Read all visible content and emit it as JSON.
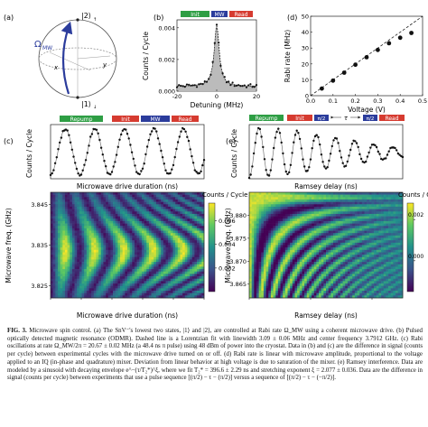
{
  "panel_labels": {
    "a": "(a)",
    "b": "(b)",
    "c": "(c)",
    "d": "(d)",
    "e": "(e)"
  },
  "bloch": {
    "ket2": "|2⟩",
    "ket1": "|1⟩",
    "omega": "Ω",
    "omega_sub": "MW",
    "x": "x",
    "y": "y",
    "sub2": "↑",
    "sub1": "↓"
  },
  "seq_labels": {
    "init": "Init",
    "mw": "MW",
    "read": "Read",
    "repump": "Repump",
    "mwpulse": "MW",
    "pi2": "π/2",
    "tau": "τ"
  },
  "colors": {
    "green": "#2e9e44",
    "red": "#d63b30",
    "blue": "#2b3c9c",
    "line": "#222222",
    "fit": "#777777"
  },
  "chart_data": [
    {
      "panel": "b",
      "type": "scatter",
      "title": "",
      "xlabel": "Detuning (MHz)",
      "ylabel": "Counts / Cycle",
      "xlim": [
        -20,
        20
      ],
      "ylim": [
        0,
        0.0045
      ],
      "xticks": [
        "-20",
        "0",
        "20"
      ],
      "yticks": [
        "0.000",
        "0.002",
        "0.004"
      ],
      "fit": "Lorentzian",
      "center": 0,
      "fwhm": 3.09,
      "peak": 0.0041,
      "baseline": 0.0003
    },
    {
      "panel": "c",
      "type": "line",
      "title": "",
      "xlabel": "Microwave drive duration (ns)",
      "ylabel": "Counts / Cycle",
      "xlim": [
        0,
        250
      ],
      "rabi_freq_mhz": 20.67,
      "periods": 5.2
    },
    {
      "panel": "d",
      "type": "scatter",
      "title": "",
      "xlabel": "Voltage (V)",
      "ylabel": "Rabi rate (MHz)",
      "xlim": [
        0,
        0.5
      ],
      "ylim": [
        0,
        50
      ],
      "xticks": [
        "0.0",
        "0.1",
        "0.2",
        "0.3",
        "0.4",
        "0.5"
      ],
      "yticks": [
        "0",
        "10",
        "20",
        "30",
        "40",
        "50"
      ],
      "x": [
        0.05,
        0.1,
        0.15,
        0.2,
        0.25,
        0.3,
        0.35,
        0.4,
        0.45
      ],
      "y": [
        4.5,
        9.5,
        14.5,
        19.5,
        24.2,
        28.8,
        33,
        36.5,
        39.5
      ],
      "dashed_line": "linear"
    },
    {
      "panel": "c-map",
      "type": "heatmap",
      "title": "",
      "xlabel": "Microwave drive duration (ns)",
      "ylabel": "Microwave freq. (GHz)",
      "xlim": [
        0,
        250
      ],
      "ylim": [
        3.822,
        3.848
      ],
      "yticks": [
        "3.825",
        "3.835",
        "3.845"
      ],
      "xticks": [
        "0",
        "50",
        "100",
        "150",
        "200",
        "250"
      ],
      "colorbar_label": "Counts / Cycle",
      "colorbar_ticks": [
        "0.002",
        "0.004",
        "0.006"
      ],
      "clim": [
        0,
        0.0075
      ]
    },
    {
      "panel": "e",
      "type": "line",
      "title": "",
      "xlabel": "Ramsey delay (ns)",
      "ylabel": "Counts / Cycle",
      "xlim": [
        0,
        500
      ],
      "t2_star_ns": 396.6,
      "periods": 8
    },
    {
      "panel": "e-map",
      "type": "heatmap",
      "title": "",
      "xlabel": "Ramsey delay (ns)",
      "ylabel": "Microwave freq. (GHz)",
      "xlim": [
        0,
        500
      ],
      "ylim": [
        3.862,
        3.885
      ],
      "yticks": [
        "3.865",
        "3.870",
        "3.875",
        "3.880"
      ],
      "xticks": [
        "0",
        "200",
        "400"
      ],
      "colorbar_label": "Counts / Cycle",
      "colorbar_ticks": [
        "0.000",
        "0.002"
      ],
      "clim": [
        -0.0015,
        0.0028
      ]
    }
  ],
  "caption": {
    "label": "FIG. 3.",
    "text": "Microwave spin control. (a) The SnV⁻'s lowest two states, |1⟩ and |2⟩, are controlled at Rabi rate Ω_MW using a coherent microwave drive. (b) Pulsed optically detected magnetic resonance (ODMR). Dashed line is a Lorentzian fit with linewidth 3.09 ± 0.06 MHz and center frequency 3.7912 GHz. (c) Rabi oscillations at rate Ω_MW/2π = 20.67 ± 0.02 MHz (a 48.4 ns π pulse) using 48 dBm of power into the cryostat. Data in (b) and (c) are the difference in signal (counts per cycle) between experimental cycles with the microwave drive turned on or off. (d) Rabi rate is linear with microwave amplitude, proportional to the voltage applied to an IQ (in-phase and quadrature) mixer. Deviation from linear behavior at high voltage is due to saturation of the mixer. (e) Ramsey interference. Data are modeled by a sinusoid with decaying envelope e^−(τ/T₂*)^ξ, where we fit T₂* = 396.6 ± 2.29 ns and stretching exponent ξ = 2.077 ± 0.036. Data are the difference in signal (counts per cycle) between experiments that use a pulse sequence [(π/2) − τ − (π/2)] versus a sequence of [(π/2) − τ − (−π/2)]."
  }
}
